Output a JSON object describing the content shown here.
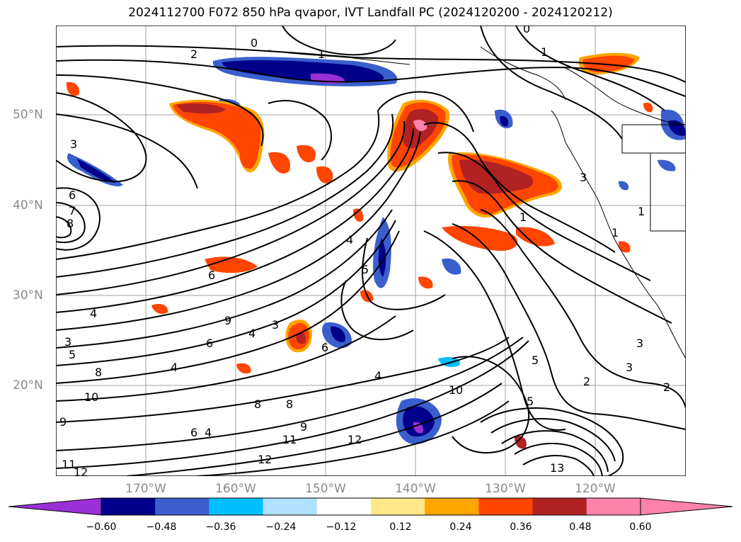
{
  "title": "2024112700 F072 850 hPa qvapor, IVT Landfall PC (2024120200 - 2024120212)",
  "axes": {
    "lat_labels": [
      "50°N",
      "40°N",
      "30°N",
      "20°N"
    ],
    "lon_labels": [
      "170°W",
      "160°W",
      "150°W",
      "140°W",
      "130°W",
      "120°W"
    ]
  },
  "colorbar": {
    "tick_labels": [
      "−0.60",
      "−0.48",
      "−0.36",
      "−0.24",
      "−0.12",
      "0.12",
      "0.24",
      "0.36",
      "0.48",
      "0.60"
    ],
    "colors": [
      "#9b30d6",
      "#00008b",
      "#3a5fcd",
      "#00bfff",
      "#b0e2ff",
      "#ffffff",
      "#ffe88a",
      "#ffa500",
      "#ff4500",
      "#b22222",
      "#ff82ab",
      "#ff82ab"
    ],
    "extend": "both"
  },
  "contour_labels": [
    "0",
    "1",
    "2",
    "3",
    "4",
    "5",
    "6",
    "7",
    "8",
    "9",
    "10",
    "11",
    "12",
    "13"
  ]
}
